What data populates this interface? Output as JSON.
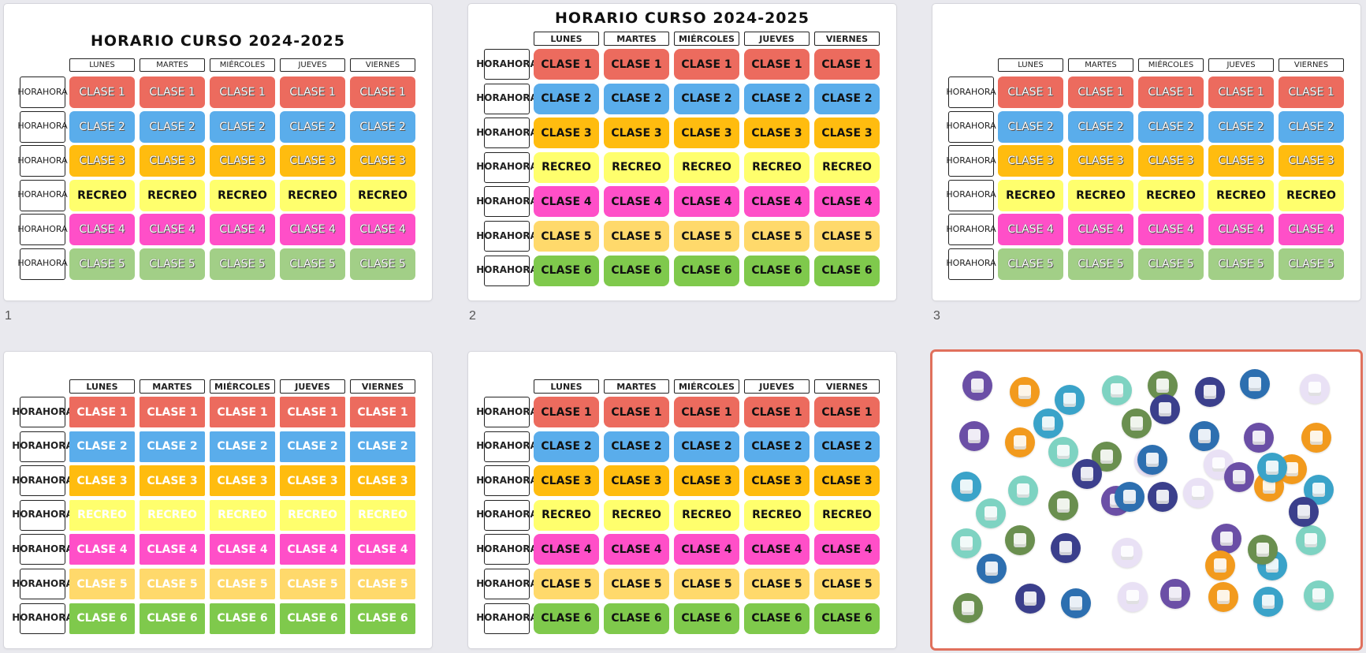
{
  "slides": [
    {
      "number": "1",
      "title": "HORARIO CURSO 2024-2025",
      "days": [
        "LUNES",
        "MARTES",
        "MIÉRCOLES",
        "JUEVES",
        "VIERNES"
      ],
      "hour_label": [
        "HORA",
        "HORA"
      ],
      "rows": [
        "CLASE 1",
        "CLASE 2",
        "CLASE 3",
        "RECREO",
        "CLASE 4",
        "CLASE 5"
      ]
    },
    {
      "number": "2",
      "title": "HORARIO CURSO 2024-2025",
      "days": [
        "LUNES",
        "MARTES",
        "MIÉRCOLES",
        "JUEVES",
        "VIERNES"
      ],
      "hour_label": [
        "HORA",
        "HORA"
      ],
      "rows": [
        "CLASE 1",
        "CLASE 2",
        "CLASE 3",
        "RECREO",
        "CLASE 4",
        "CLASE 5",
        "CLASE 6"
      ]
    },
    {
      "number": "3",
      "title": "",
      "days": [
        "LUNES",
        "MARTES",
        "MIÉRCOLES",
        "JUEVES",
        "VIERNES"
      ],
      "hour_label": [
        "HORA",
        "HORA"
      ],
      "rows": [
        "CLASE 1",
        "CLASE 2",
        "CLASE 3",
        "RECREO",
        "CLASE 4",
        "CLASE 5"
      ]
    },
    {
      "number": "",
      "title": "",
      "days": [
        "LUNES",
        "MARTES",
        "MIÉRCOLES",
        "JUEVES",
        "VIERNES"
      ],
      "hour_label": [
        "HORA",
        "HORA"
      ],
      "rows": [
        "CLASE 1",
        "CLASE 2",
        "CLASE 3",
        "RECREO",
        "CLASE 4",
        "CLASE 5",
        "CLASE 6"
      ]
    },
    {
      "number": "",
      "title": "",
      "days": [
        "LUNES",
        "MARTES",
        "MIÉRCOLES",
        "JUEVES",
        "VIERNES"
      ],
      "hour_label": [
        "HORA",
        "HORA"
      ],
      "rows": [
        "CLASE 1",
        "CLASE 2",
        "CLASE 3",
        "RECREO",
        "CLASE 4",
        "CLASE 5",
        "CLASE 6"
      ]
    },
    {
      "number": "",
      "title": ""
    }
  ],
  "colors": {
    "CLASE 1": "#ec6b5e",
    "CLASE 2": "#5aadeb",
    "CLASE 3": "#ffbc0f",
    "RECREO": "#ffff6d",
    "CLASE 4": "#ff4fc8",
    "CLASE 5 pastel": "#a2cf87",
    "CLASE 5": "#ffd96b",
    "CLASE 6": "#7fc94c",
    "selection": "#e0705c"
  },
  "icons": [
    "document-icon",
    "chip-icon",
    "headphones-icon",
    "atom-icon",
    "checklist-icon",
    "question-screen-icon",
    "mouse-icon",
    "test-tubes-icon",
    "graduate-icon",
    "abc-board-icon",
    "hand-icon",
    "teacher-board-icon",
    "laptop-student-icon",
    "flask-icon",
    "pencil-ruler-icon",
    "pen-paper-icon",
    "museum-icon",
    "globe-icon",
    "planet-icon",
    "planet-ring-icon",
    "telescope-icon",
    "chemistry-icon",
    "question-board-icon",
    "presentation-icon",
    "microscope-icon",
    "plant-flask-icon",
    "student-tablet-icon",
    "microscope-2-icon",
    "paper-icon",
    "atom-2-icon",
    "robot-icon",
    "drawing-icon",
    "beaker-icon",
    "flask-2-icon",
    "bus-stop-icon",
    "video-lesson-icon",
    "abacus-icon",
    "teacher-icon",
    "book-scan-icon",
    "compass-icon",
    "calendar-icon",
    "chart-easel-icon",
    "teacher-2-icon",
    "student-icon",
    "paper-2-icon",
    "chalkboard-icon",
    "test-tube-icon",
    "lab-icon",
    "plus-minus-icon",
    "calculator-icon",
    "search-doc-icon",
    "book-icon",
    "museum-2-icon",
    "notebook-icon"
  ]
}
